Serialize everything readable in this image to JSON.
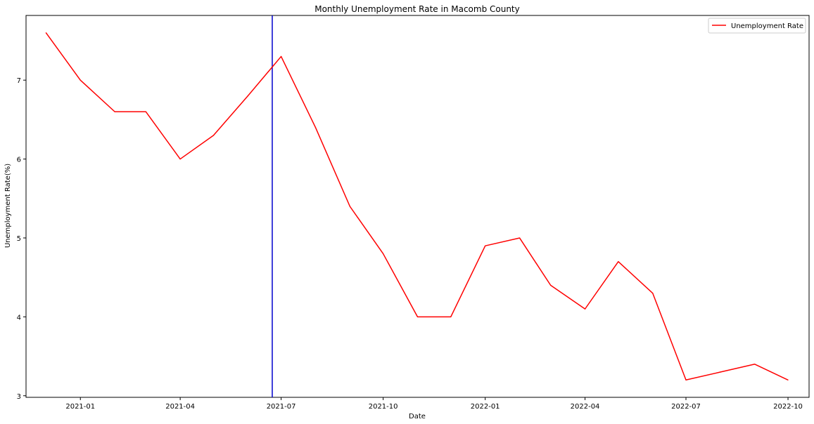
{
  "chart_data": {
    "type": "line",
    "title": "Monthly Unemployment Rate in Macomb County",
    "xlabel": "Date",
    "ylabel": "Unemployment Rate(%)",
    "x": [
      "2020-12-01",
      "2021-01-01",
      "2021-02-01",
      "2021-03-01",
      "2021-04-01",
      "2021-05-01",
      "2021-06-01",
      "2021-07-01",
      "2021-08-01",
      "2021-09-01",
      "2021-10-01",
      "2021-11-01",
      "2021-12-01",
      "2022-01-01",
      "2022-02-01",
      "2022-03-01",
      "2022-04-01",
      "2022-05-01",
      "2022-06-01",
      "2022-07-01",
      "2022-08-01",
      "2022-09-01",
      "2022-10-01"
    ],
    "series": [
      {
        "name": "Unemployment Rate",
        "color": "#ff0000",
        "values": [
          7.6,
          7.0,
          6.6,
          6.6,
          6.0,
          6.3,
          6.8,
          7.3,
          6.4,
          5.4,
          4.8,
          4.0,
          4.0,
          4.9,
          5.0,
          4.4,
          4.1,
          4.7,
          4.3,
          3.2,
          3.3,
          3.4,
          3.2
        ]
      }
    ],
    "vline": {
      "x": "2021-06-23",
      "color": "#0000cc"
    },
    "xlim": [
      "2020-11-13",
      "2022-10-20"
    ],
    "ylim": [
      2.98,
      7.82
    ],
    "xticks": [
      {
        "value": "2021-01-01",
        "label": "2021-01"
      },
      {
        "value": "2021-04-01",
        "label": "2021-04"
      },
      {
        "value": "2021-07-01",
        "label": "2021-07"
      },
      {
        "value": "2021-10-01",
        "label": "2021-10"
      },
      {
        "value": "2022-01-01",
        "label": "2022-01"
      },
      {
        "value": "2022-04-01",
        "label": "2022-04"
      },
      {
        "value": "2022-07-01",
        "label": "2022-07"
      },
      {
        "value": "2022-10-01",
        "label": "2022-10"
      }
    ],
    "yticks": [
      {
        "value": 3,
        "label": "3"
      },
      {
        "value": 4,
        "label": "4"
      },
      {
        "value": 5,
        "label": "5"
      },
      {
        "value": 6,
        "label": "6"
      },
      {
        "value": 7,
        "label": "7"
      }
    ],
    "grid": false,
    "legend": "top-right"
  }
}
